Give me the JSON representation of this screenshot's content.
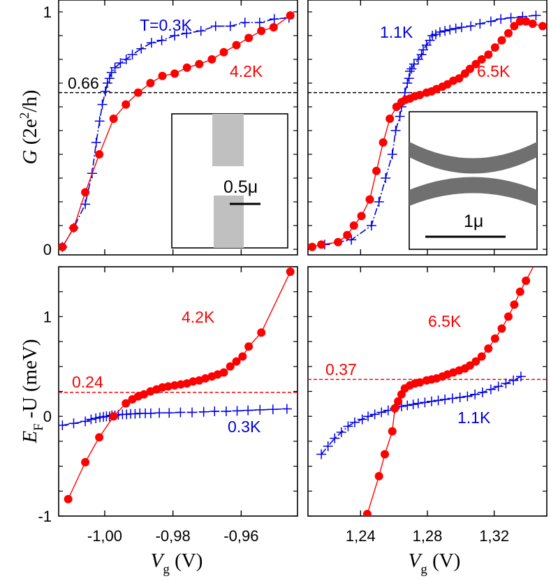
{
  "chart_data": [
    {
      "type": "line",
      "panel": "top-left",
      "ylabel": "G (2e²/h)",
      "xlim": [
        -1.0135,
        -0.9435
      ],
      "ylim": [
        0,
        1
      ],
      "yticks": [
        {
          "v": 0,
          "label": "0"
        },
        {
          "v": 1,
          "label": "1"
        }
      ],
      "xticks": [
        {
          "v": -1.0,
          "label": ""
        },
        {
          "v": -0.98,
          "label": ""
        },
        {
          "v": -0.96,
          "label": ""
        }
      ],
      "reference_line": {
        "y": 0.66,
        "label": "0.66",
        "color": "#000000"
      },
      "series": [
        {
          "name": "T=0.3K",
          "color": "#0000e0",
          "marker": "plus",
          "line": "dashdot",
          "x": [
            -1.0124,
            -1.0091,
            -1.0057,
            -1.0037,
            -1.0025,
            -1.0015,
            -1.0007,
            -0.9998,
            -0.9992,
            -0.9986,
            -0.998,
            -0.997,
            -0.9954,
            -0.9937,
            -0.9919,
            -0.9893,
            -0.9863,
            -0.9833,
            -0.9795,
            -0.976,
            -0.9718,
            -0.9675,
            -0.9632,
            -0.9589,
            -0.9546,
            -0.9503,
            -0.946
          ],
          "y": [
            0.01,
            0.09,
            0.19,
            0.32,
            0.45,
            0.54,
            0.61,
            0.665,
            0.7,
            0.72,
            0.745,
            0.765,
            0.785,
            0.8,
            0.82,
            0.845,
            0.87,
            0.88,
            0.9,
            0.91,
            0.92,
            0.94,
            0.94,
            0.955,
            0.955,
            0.97,
            0.975
          ]
        },
        {
          "name": "4.2K",
          "color": "#ff0000",
          "marker": "circle",
          "line": "solid",
          "x": [
            -1.0124,
            -1.0091,
            -1.0057,
            -1.0016,
            -0.9974,
            -0.9938,
            -0.9902,
            -0.9866,
            -0.9831,
            -0.9795,
            -0.9759,
            -0.9723,
            -0.9686,
            -0.9651,
            -0.9614,
            -0.9578,
            -0.9541,
            -0.9505,
            -0.9456
          ],
          "y": [
            0.01,
            0.09,
            0.24,
            0.4,
            0.55,
            0.61,
            0.66,
            0.7,
            0.73,
            0.74,
            0.765,
            0.78,
            0.8,
            0.83,
            0.86,
            0.89,
            0.92,
            0.935,
            0.985
          ]
        }
      ]
    },
    {
      "type": "line",
      "panel": "top-right",
      "xlim": [
        1.2085,
        1.3515
      ],
      "ylim": [
        0,
        1
      ],
      "xticks": [
        {
          "v": 1.24,
          "label": ""
        },
        {
          "v": 1.28,
          "label": ""
        },
        {
          "v": 1.32,
          "label": ""
        }
      ],
      "reference_line": {
        "y": 0.66,
        "label": "",
        "color": "#000000"
      },
      "series": [
        {
          "name": "1.1K",
          "color": "#0000e0",
          "marker": "plus",
          "line": "dashdot",
          "x": [
            1.2185,
            1.2345,
            1.2465,
            1.251,
            1.255,
            1.259,
            1.261,
            1.2635,
            1.2645,
            1.2665,
            1.268,
            1.269,
            1.2695,
            1.2705,
            1.272,
            1.2745,
            1.2765,
            1.2775,
            1.2795,
            1.2815,
            1.283,
            1.285,
            1.2875,
            1.2905,
            1.2935,
            1.297,
            1.3005,
            1.306,
            1.3115,
            1.318,
            1.324,
            1.33,
            1.337,
            1.345
          ],
          "y": [
            0.02,
            0.04,
            0.1,
            0.2,
            0.3,
            0.4,
            0.5,
            0.56,
            0.6,
            0.66,
            0.7,
            0.72,
            0.75,
            0.76,
            0.78,
            0.8,
            0.82,
            0.84,
            0.86,
            0.88,
            0.9,
            0.905,
            0.915,
            0.92,
            0.925,
            0.93,
            0.935,
            0.94,
            0.95,
            0.96,
            0.97,
            0.975,
            0.98,
            0.985
          ]
        },
        {
          "name": "6.5K",
          "color": "#ff0000",
          "marker": "circle",
          "line": "solid",
          "x": [
            1.211,
            1.2165,
            1.2265,
            1.232,
            1.236,
            1.2405,
            1.2455,
            1.2495,
            1.2535,
            1.2575,
            1.2615,
            1.2645,
            1.267,
            1.2695,
            1.2725,
            1.2755,
            1.2795,
            1.2825,
            1.2855,
            1.289,
            1.292,
            1.2955,
            1.299,
            1.3025,
            1.3055,
            1.309,
            1.3125,
            1.3165,
            1.3205,
            1.3245,
            1.3285,
            1.332,
            1.3355,
            1.339,
            1.343,
            1.349
          ],
          "y": [
            0.01,
            0.02,
            0.03,
            0.06,
            0.1,
            0.14,
            0.21,
            0.33,
            0.45,
            0.55,
            0.6,
            0.62,
            0.63,
            0.635,
            0.645,
            0.65,
            0.66,
            0.665,
            0.675,
            0.685,
            0.695,
            0.71,
            0.72,
            0.74,
            0.76,
            0.78,
            0.8,
            0.82,
            0.85,
            0.88,
            0.91,
            0.94,
            0.96,
            0.96,
            0.95,
            0.94
          ]
        }
      ]
    },
    {
      "type": "line",
      "panel": "bottom-left",
      "ylabel": "E_F -U (meV)",
      "xlabel": "V_g (V)",
      "xlim": [
        -1.0135,
        -0.9435
      ],
      "ylim": [
        -1,
        1.5
      ],
      "yticks": [
        {
          "v": -1,
          "label": "-1"
        },
        {
          "v": 0,
          "label": "0"
        },
        {
          "v": 1,
          "label": "1"
        }
      ],
      "xticks": [
        {
          "v": -1.0,
          "label": "-1,00"
        },
        {
          "v": -0.98,
          "label": "-0,98"
        },
        {
          "v": -0.96,
          "label": "-0,96"
        }
      ],
      "reference_line": {
        "y": 0.24,
        "label": "0.24",
        "color": "#ff0000"
      },
      "series": [
        {
          "name": "0.3K",
          "color": "#0000e0",
          "marker": "plus",
          "line": "dashdot",
          "x": [
            -1.0124,
            -1.0091,
            -1.0057,
            -1.004,
            -1.0026,
            -1.0014,
            -1.0004,
            -0.9995,
            -0.9986,
            -0.9979,
            -0.997,
            -0.996,
            -0.9948,
            -0.9936,
            -0.9924,
            -0.9911,
            -0.9897,
            -0.9881,
            -0.9865,
            -0.984,
            -0.9811,
            -0.9778,
            -0.9744,
            -0.971,
            -0.9678,
            -0.9644,
            -0.9612,
            -0.958,
            -0.9545,
            -0.9507,
            -0.9466
          ],
          "y": [
            -0.09,
            -0.07,
            -0.05,
            -0.03,
            -0.02,
            -0.01,
            -0.005,
            0.0,
            0.0,
            0.01,
            0.01,
            0.015,
            0.02,
            0.02,
            0.025,
            0.025,
            0.03,
            0.03,
            0.03,
            0.035,
            0.035,
            0.04,
            0.04,
            0.045,
            0.05,
            0.05,
            0.055,
            0.06,
            0.065,
            0.07,
            0.075
          ]
        },
        {
          "name": "4.2K",
          "color": "#ff0000",
          "marker": "circle",
          "line": "solid",
          "x": [
            -1.0107,
            -1.0057,
            -1.0016,
            -0.9974,
            -0.9938,
            -0.9919,
            -0.9902,
            -0.9885,
            -0.9866,
            -0.9848,
            -0.9831,
            -0.9814,
            -0.9795,
            -0.9777,
            -0.9759,
            -0.9741,
            -0.9723,
            -0.9705,
            -0.9686,
            -0.9669,
            -0.9651,
            -0.9632,
            -0.9614,
            -0.9596,
            -0.9578,
            -0.9541,
            -0.9456
          ],
          "y": [
            -0.83,
            -0.46,
            -0.21,
            0.0,
            0.13,
            0.17,
            0.2,
            0.22,
            0.25,
            0.27,
            0.29,
            0.3,
            0.31,
            0.32,
            0.33,
            0.35,
            0.36,
            0.38,
            0.4,
            0.42,
            0.44,
            0.5,
            0.55,
            0.6,
            0.7,
            0.84,
            1.45
          ]
        }
      ]
    },
    {
      "type": "line",
      "panel": "bottom-right",
      "xlabel": "V_g (V)",
      "xlim": [
        1.2085,
        1.3515
      ],
      "ylim": [
        -1,
        1.5
      ],
      "xticks": [
        {
          "v": 1.24,
          "label": "1,24"
        },
        {
          "v": 1.28,
          "label": "1,28"
        },
        {
          "v": 1.32,
          "label": "1,32"
        }
      ],
      "reference_line": {
        "y": 0.37,
        "label": "0.37",
        "color": "#ff0000"
      },
      "series": [
        {
          "name": "1.1K",
          "color": "#0000e0",
          "marker": "plus",
          "line": "dashdot",
          "x": [
            1.2165,
            1.2205,
            1.2245,
            1.2285,
            1.2325,
            1.2365,
            1.241,
            1.2445,
            1.2485,
            1.2525,
            1.2565,
            1.2605,
            1.2645,
            1.268,
            1.2715,
            1.2745,
            1.2785,
            1.2825,
            1.2865,
            1.2905,
            1.295,
            1.2995,
            1.304,
            1.3085,
            1.313,
            1.318,
            1.3225,
            1.327,
            1.3315,
            1.336
          ],
          "y": [
            -0.38,
            -0.3,
            -0.22,
            -0.16,
            -0.1,
            -0.06,
            -0.03,
            0.0,
            0.02,
            0.04,
            0.06,
            0.08,
            0.1,
            0.11,
            0.12,
            0.13,
            0.14,
            0.15,
            0.16,
            0.17,
            0.18,
            0.19,
            0.2,
            0.22,
            0.24,
            0.27,
            0.3,
            0.33,
            0.36,
            0.4
          ]
        },
        {
          "name": "6.5K",
          "color": "#ff0000",
          "marker": "circle",
          "line": "solid",
          "x": [
            1.244,
            1.251,
            1.2545,
            1.259,
            1.2605,
            1.2625,
            1.2645,
            1.2665,
            1.2695,
            1.2725,
            1.2755,
            1.2795,
            1.2825,
            1.2855,
            1.289,
            1.292,
            1.2955,
            1.299,
            1.3025,
            1.3055,
            1.309,
            1.3125,
            1.3165,
            1.3205,
            1.3245,
            1.3285,
            1.332,
            1.3355,
            1.339,
            1.345
          ],
          "y": [
            -0.98,
            -0.6,
            -0.38,
            -0.15,
            0.08,
            0.15,
            0.22,
            0.28,
            0.31,
            0.33,
            0.34,
            0.36,
            0.37,
            0.38,
            0.4,
            0.42,
            0.44,
            0.46,
            0.48,
            0.51,
            0.55,
            0.6,
            0.68,
            0.78,
            0.88,
            1.0,
            1.12,
            1.25,
            1.36,
            1.55
          ]
        }
      ]
    }
  ],
  "labels": {
    "t03": "T=0.3K",
    "t42_top": "4.2K",
    "t11_top": "1.1K",
    "t65_top": "6.5K",
    "t42_bottom": "4.2K",
    "t03_bottom": "0.3K",
    "t65_bottom": "6.5K",
    "t11_bottom": "1.1K",
    "ref_066": "0.66",
    "ref_024": "0.24",
    "ref_037": "0.37",
    "inset_left_scale": "0.5μ",
    "inset_right_scale": "1μ"
  },
  "axis_text": {
    "ylabel_top_main": "G",
    "ylabel_top_rest_a": " (2e",
    "ylabel_top_sup": "2",
    "ylabel_top_rest_b": "/h)",
    "ylabel_bottom_E": "E",
    "ylabel_bottom_sub": "F",
    "ylabel_bottom_rest": " -U (meV)",
    "xlabel_V": "V",
    "xlabel_sub": "g",
    "xlabel_unit": " (V)"
  },
  "colors": {
    "blue_series": "#0000e0",
    "red_series": "#ff0000",
    "inset_gate_left": "#c0c0c0",
    "inset_gate_right": "#707070"
  }
}
